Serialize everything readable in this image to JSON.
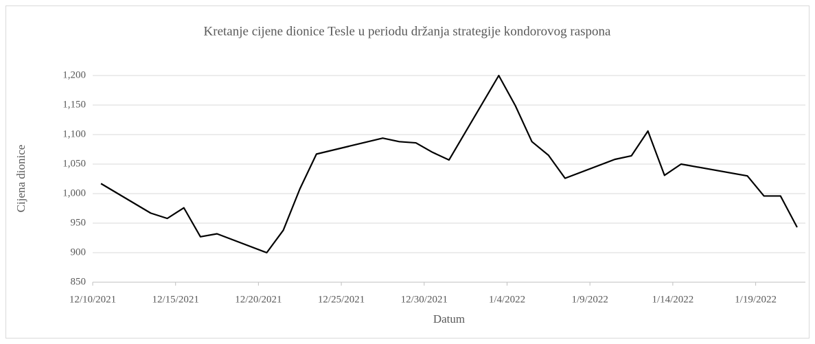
{
  "chart_data": {
    "type": "line",
    "title": "Kretanje cijene dionice Tesle u periodu držanja strategije kondorovog raspona",
    "x_label": "Datum",
    "y_label": "Cijena dionice",
    "x": [
      "12/10/2021",
      "12/13/2021",
      "12/14/2021",
      "12/15/2021",
      "12/16/2021",
      "12/17/2021",
      "12/20/2021",
      "12/21/2021",
      "12/22/2021",
      "12/23/2021",
      "12/27/2021",
      "12/28/2021",
      "12/29/2021",
      "12/30/2021",
      "12/31/2021",
      "1/3/2022",
      "1/4/2022",
      "1/5/2022",
      "1/6/2022",
      "1/7/2022",
      "1/10/2022",
      "1/11/2022",
      "1/12/2022",
      "1/13/2022",
      "1/14/2022",
      "1/18/2022",
      "1/19/2022",
      "1/20/2022",
      "1/21/2022"
    ],
    "series": [
      {
        "name": "Cijena dionice",
        "color": "#000000",
        "values": [
          1017,
          967,
          958,
          976,
          927,
          932,
          900,
          938,
          1008,
          1067,
          1094,
          1088,
          1086,
          1070,
          1057,
          1200,
          1149,
          1088,
          1065,
          1026,
          1058,
          1064,
          1106,
          1031,
          1050,
          1030,
          996,
          996,
          943
        ]
      }
    ],
    "xlim": [
      "12/10/2021",
      "1/22/2022"
    ],
    "xticks": [
      "12/10/2021",
      "12/15/2021",
      "12/20/2021",
      "12/25/2021",
      "12/30/2021",
      "1/4/2022",
      "1/9/2022",
      "1/14/2022",
      "1/19/2022"
    ],
    "ylim": [
      850,
      1200
    ],
    "yticks": [
      850,
      900,
      950,
      {
        "value": 1000,
        "label": "1,000"
      },
      {
        "value": 1050,
        "label": "1,050"
      },
      {
        "value": 1100,
        "label": "1,100"
      },
      {
        "value": 1150,
        "label": "1,150"
      },
      {
        "value": 1200,
        "label": "1,200"
      }
    ],
    "grid": true
  }
}
